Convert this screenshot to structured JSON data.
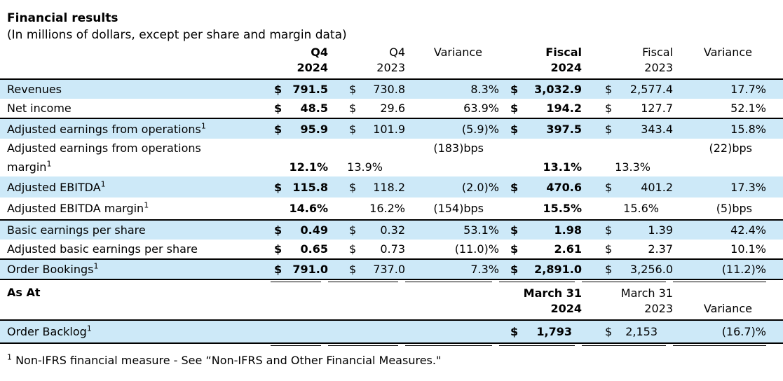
{
  "title": "Financial results",
  "subtitle": "(In millions of dollars, except per share and margin data)",
  "colors": {
    "highlight": "#cde9f8",
    "rule": "#000000",
    "text": "#000000"
  },
  "header": {
    "q4_2024": {
      "line1": "Q4",
      "line2": "2024"
    },
    "q4_2023": {
      "line1": "Q4",
      "line2": "2023"
    },
    "variance1": "Variance",
    "fiscal_2024": {
      "line1": "Fiscal",
      "line2": "2024"
    },
    "fiscal_2023": {
      "line1": "Fiscal",
      "line2": "2023"
    },
    "variance2": "Variance"
  },
  "rows": [
    {
      "label": "Revenues",
      "c1": {
        "cur": "$",
        "val": "791.5"
      },
      "c2": {
        "cur": "$",
        "val": "730.8"
      },
      "v1": "8.3%",
      "c4": {
        "cur": "$",
        "val": "3,032.9"
      },
      "c5": {
        "cur": "$",
        "val": "2,577.4"
      },
      "v2": "17.7%"
    },
    {
      "label": "Net income",
      "c1": {
        "cur": "$",
        "val": "48.5"
      },
      "c2": {
        "cur": "$",
        "val": "29.6"
      },
      "v1": "63.9%",
      "c4": {
        "cur": "$",
        "val": "194.2"
      },
      "c5": {
        "cur": "$",
        "val": "127.7"
      },
      "v2": "52.1%"
    },
    {
      "label": "Adjusted earnings from operations",
      "sup": "1",
      "c1": {
        "cur": "$",
        "val": "95.9"
      },
      "c2": {
        "cur": "$",
        "val": "101.9"
      },
      "v1": "(5.9)%",
      "c4": {
        "cur": "$",
        "val": "397.5"
      },
      "c5": {
        "cur": "$",
        "val": "343.4"
      },
      "v2": "15.8%"
    },
    {
      "label_line1": "Adjusted earnings from operations",
      "label_line2": "margin",
      "sup": "1",
      "v1": "(183)bps",
      "v2": "(22)bps",
      "p1": "12.1%",
      "p2": "13.9%",
      "p4": "13.1%",
      "p5": "13.3%"
    },
    {
      "label": "Adjusted EBITDA",
      "sup": "1",
      "c1": {
        "cur": "$",
        "val": "115.8"
      },
      "c2": {
        "cur": "$",
        "val": "118.2"
      },
      "v1": "(2.0)%",
      "c4": {
        "cur": "$",
        "val": "470.6"
      },
      "c5": {
        "cur": "$",
        "val": "401.2"
      },
      "v2": "17.3%"
    },
    {
      "label": "Adjusted EBITDA margin",
      "sup": "1",
      "p1": "14.6%",
      "p2": "16.2%",
      "v1": "(154)bps",
      "p4": "15.5%",
      "p5": "15.6%",
      "v2": "(5)bps"
    },
    {
      "label": "Basic earnings per share",
      "c1": {
        "cur": "$",
        "val": "0.49"
      },
      "c2": {
        "cur": "$",
        "val": "0.32"
      },
      "v1": "53.1%",
      "c4": {
        "cur": "$",
        "val": "1.98"
      },
      "c5": {
        "cur": "$",
        "val": "1.39"
      },
      "v2": "42.4%"
    },
    {
      "label": "Adjusted basic earnings per share",
      "c1": {
        "cur": "$",
        "val": "0.65"
      },
      "c2": {
        "cur": "$",
        "val": "0.73"
      },
      "v1": "(11.0)%",
      "c4": {
        "cur": "$",
        "val": "2.61"
      },
      "c5": {
        "cur": "$",
        "val": "2.37"
      },
      "v2": "10.1%"
    },
    {
      "label": "Order Bookings",
      "sup": "1",
      "c1": {
        "cur": "$",
        "val": "791.0"
      },
      "c2": {
        "cur": "$",
        "val": "737.0"
      },
      "v1": "7.3%",
      "c4": {
        "cur": "$",
        "val": "2,891.0"
      },
      "c5": {
        "cur": "$",
        "val": "3,256.0"
      },
      "v2": "(11.2)%"
    }
  ],
  "as_at": {
    "label": "As At",
    "date_2024_line1": "March 31",
    "date_2024_line2": "2024",
    "date_2023_line1": "March 31",
    "date_2023_line2": "2023",
    "variance": "Variance",
    "backlog": {
      "label": "Order Backlog",
      "sup": "1",
      "c4": {
        "cur": "$",
        "val": "1,793"
      },
      "c5": {
        "cur": "$",
        "val": "2,153"
      },
      "v2": "(16.7)%"
    }
  },
  "footnote": {
    "sup": "1",
    "text": " Non-IFRS financial measure - See “Non-IFRS and Other Financial Measures.\""
  }
}
